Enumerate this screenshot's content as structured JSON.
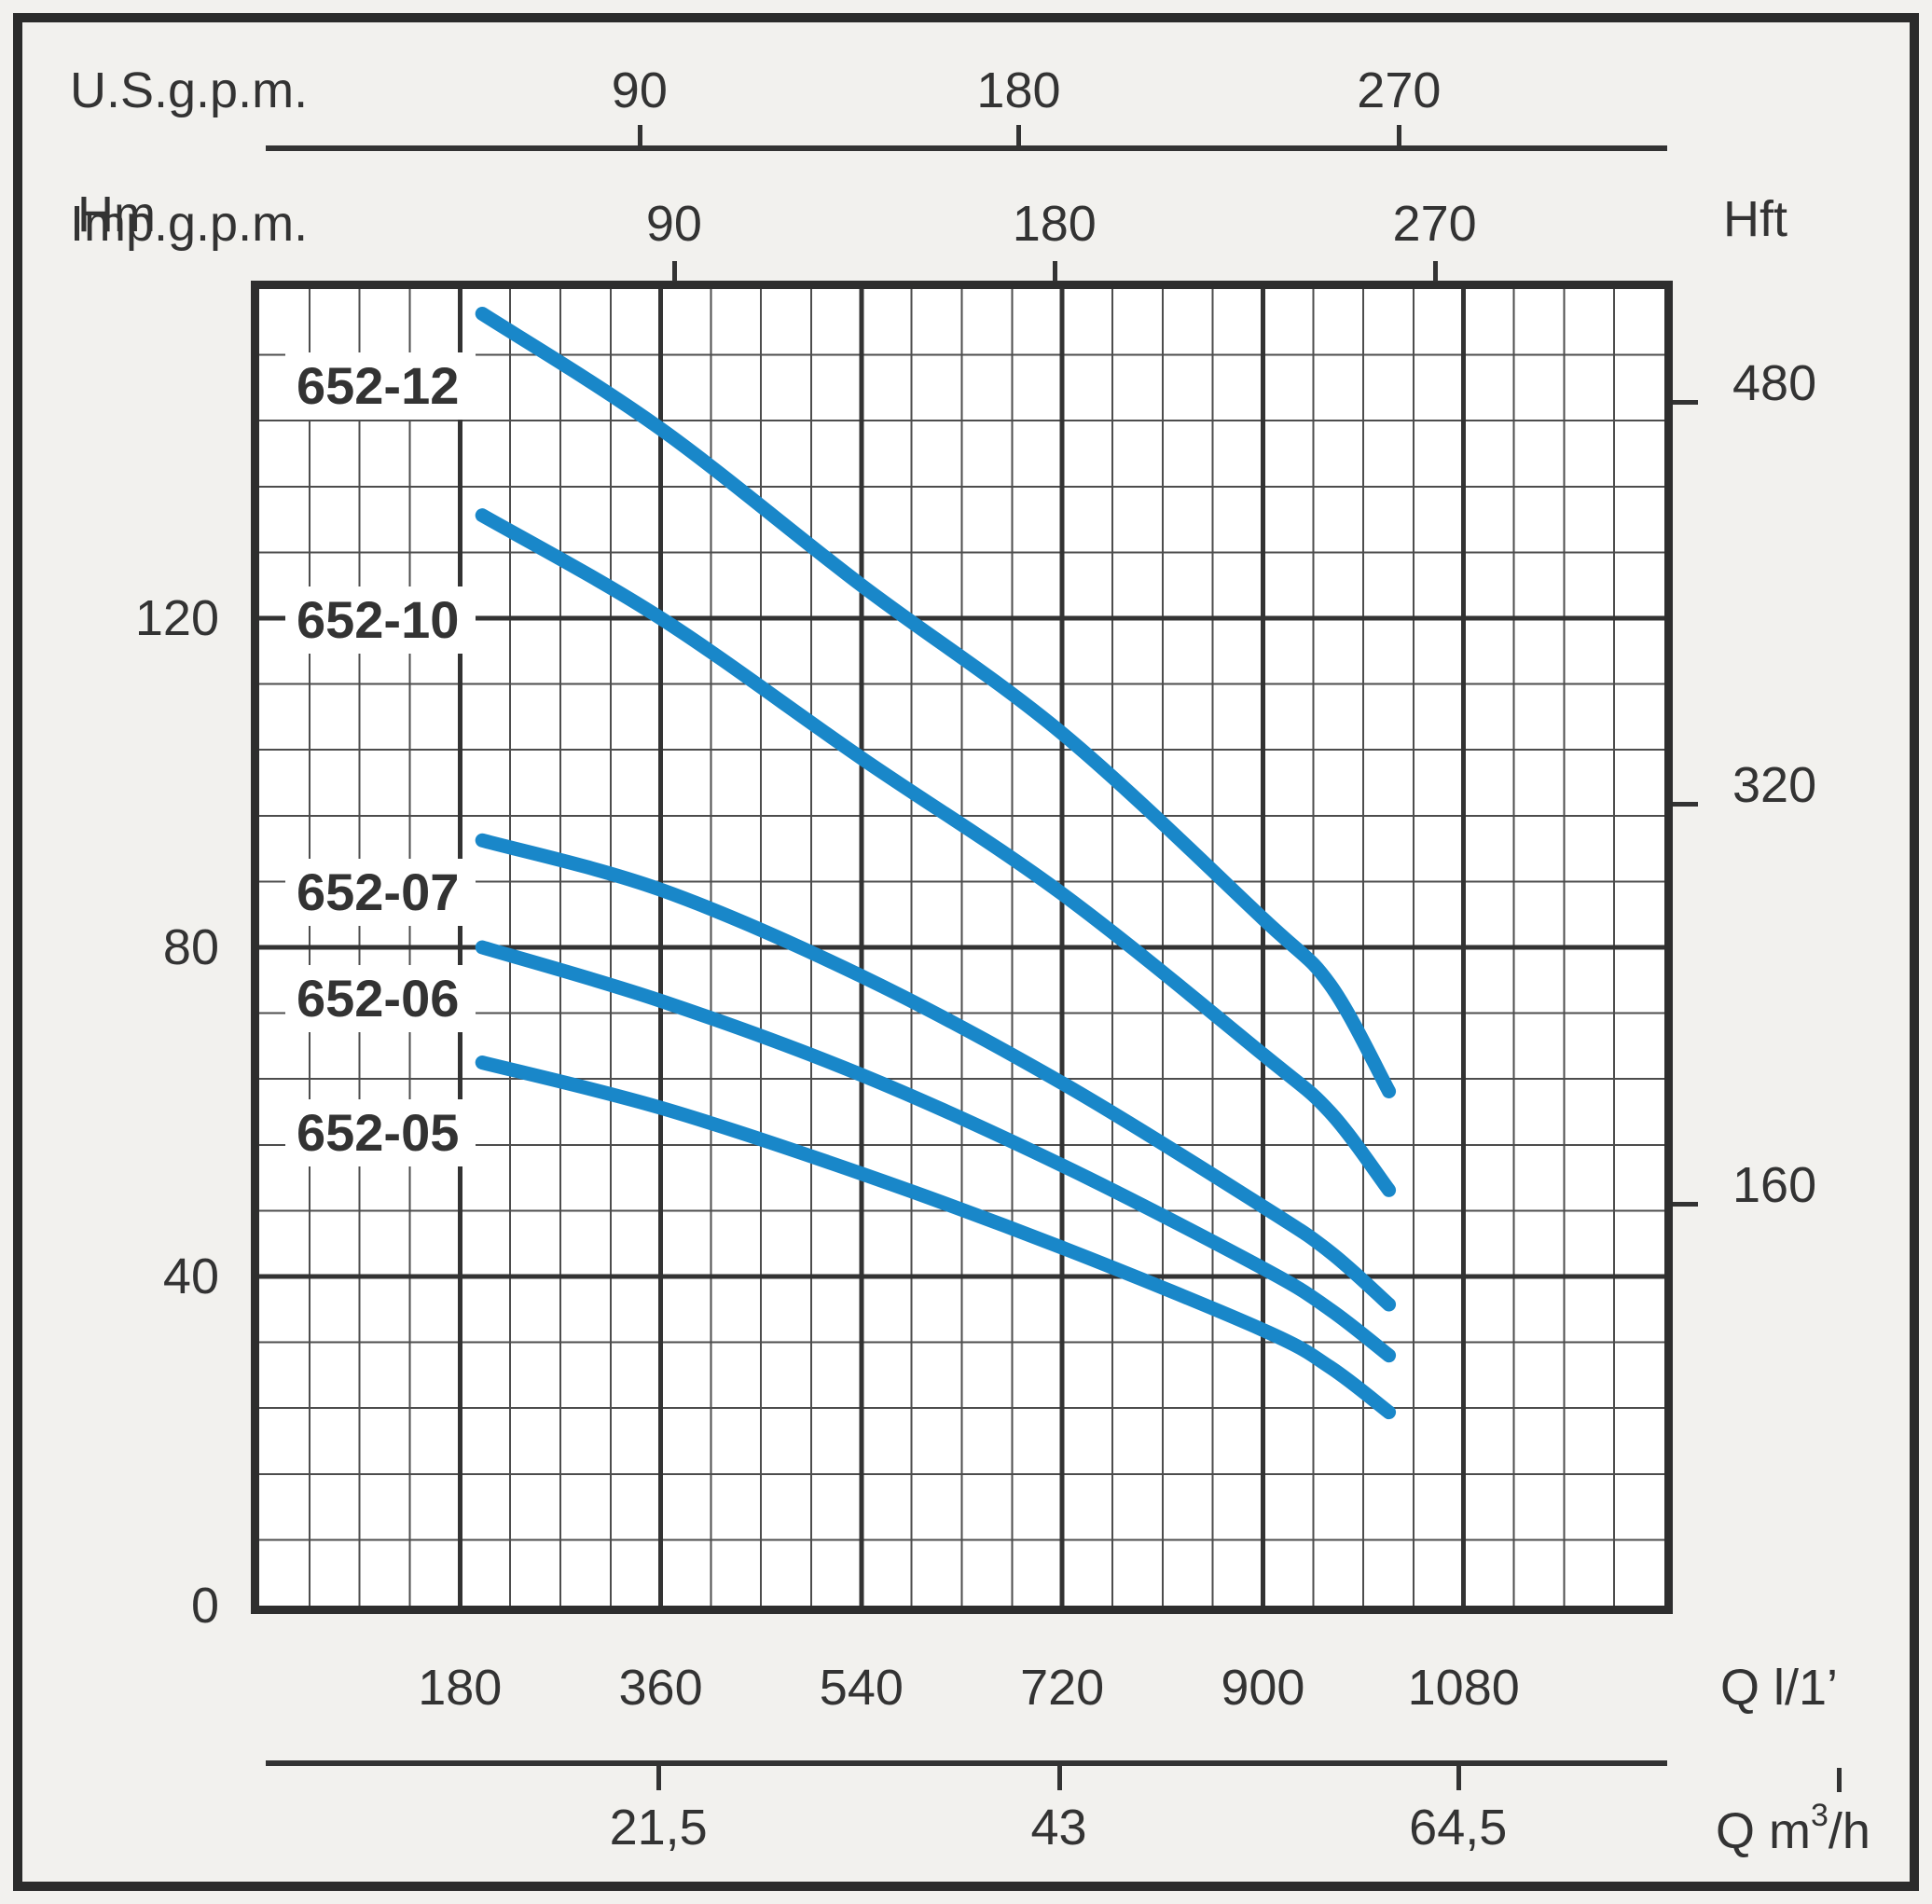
{
  "chart_data": {
    "type": "line",
    "title": "Pump performance curves 652 series (head vs flow)",
    "xlim_lpm": [
      0,
      1260
    ],
    "ylim_m": [
      0,
      160
    ],
    "grid": {
      "minor_x_step_lpm": 45,
      "major_x_step_lpm": 180,
      "minor_y_step_m": 8,
      "major_y_step_m": 40,
      "grid_on": true
    },
    "axes": {
      "top_us": {
        "label": "U.S.g.p.m.",
        "ticks": [
          {
            "label": "90",
            "q_lpm": 341
          },
          {
            "label": "180",
            "q_lpm": 681
          },
          {
            "label": "270",
            "q_lpm": 1022
          }
        ]
      },
      "top_imp": {
        "label": "Imp.g.p.m.",
        "ticks": [
          {
            "label": "90",
            "q_lpm": 372
          },
          {
            "label": "180",
            "q_lpm": 713
          },
          {
            "label": "270",
            "q_lpm": 1054
          }
        ]
      },
      "left": {
        "label": "Hm",
        "ticks": [
          {
            "label": "0",
            "h_m": 0
          },
          {
            "label": "40",
            "h_m": 40
          },
          {
            "label": "80",
            "h_m": 80
          },
          {
            "label": "120",
            "h_m": 120
          }
        ]
      },
      "right": {
        "label": "Hft",
        "ticks": [
          {
            "label": "160",
            "h_m": 48.8
          },
          {
            "label": "320",
            "h_m": 97.5
          },
          {
            "label": "480",
            "h_m": 146.3
          }
        ]
      },
      "bottom_lpm": {
        "label": "Q l/1’",
        "ticks": [
          {
            "label": "180",
            "q_lpm": 180
          },
          {
            "label": "360",
            "q_lpm": 360
          },
          {
            "label": "540",
            "q_lpm": 540
          },
          {
            "label": "720",
            "q_lpm": 720
          },
          {
            "label": "900",
            "q_lpm": 900
          },
          {
            "label": "1080",
            "q_lpm": 1080
          }
        ]
      },
      "bottom_m3h": {
        "label_parts": {
          "base": "Q m",
          "sup": "3",
          "rest": "/h"
        },
        "ticks": [
          {
            "label": "21,5",
            "q_lpm": 358
          },
          {
            "label": "43",
            "q_lpm": 717
          },
          {
            "label": "64,5",
            "q_lpm": 1075
          }
        ]
      }
    },
    "series": [
      {
        "name": "652-12",
        "label_h_m": 148.2,
        "points": [
          [
            200,
            157
          ],
          [
            360,
            143
          ],
          [
            540,
            124
          ],
          [
            720,
            106
          ],
          [
            900,
            83.5
          ],
          [
            960,
            75.5
          ],
          [
            1013,
            62.5
          ]
        ]
      },
      {
        "name": "652-10",
        "label_h_m": 119.8,
        "points": [
          [
            200,
            132.5
          ],
          [
            360,
            120
          ],
          [
            540,
            103
          ],
          [
            720,
            86.5
          ],
          [
            900,
            67
          ],
          [
            960,
            60
          ],
          [
            1013,
            50.5
          ]
        ]
      },
      {
        "name": "652-07",
        "label_h_m": 86.7,
        "points": [
          [
            200,
            93
          ],
          [
            360,
            87
          ],
          [
            540,
            76.5
          ],
          [
            720,
            63.5
          ],
          [
            900,
            48.5
          ],
          [
            960,
            43
          ],
          [
            1013,
            36.6
          ]
        ]
      },
      {
        "name": "652-06",
        "label_h_m": 73.8,
        "points": [
          [
            200,
            80
          ],
          [
            360,
            73.5
          ],
          [
            540,
            64.5
          ],
          [
            720,
            53.5
          ],
          [
            900,
            41
          ],
          [
            960,
            36
          ],
          [
            1013,
            30.4
          ]
        ]
      },
      {
        "name": "652-05",
        "label_h_m": 57.4,
        "points": [
          [
            200,
            66
          ],
          [
            360,
            60.5
          ],
          [
            540,
            52.5
          ],
          [
            720,
            43.5
          ],
          [
            900,
            33.5
          ],
          [
            960,
            29
          ],
          [
            1013,
            23.5
          ]
        ]
      }
    ],
    "colors": {
      "curve": "#1987c9",
      "text": "#333333",
      "grid_minor": "#4d4d4d",
      "grid_major": "#333333",
      "plot_border": "#2e2e2e",
      "plot_bg": "#ffffff",
      "page_bg": "#f2f1ee",
      "frame": "#2b2b2b"
    },
    "legend_position": "labels-on-plot"
  }
}
